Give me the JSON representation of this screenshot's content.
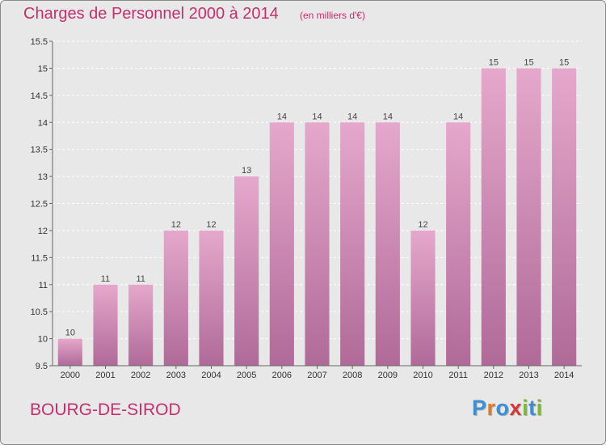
{
  "header": {
    "title": "Charges de Personnel 2000 à 2014",
    "subtitle": "(en milliers d'€)"
  },
  "footer": {
    "commune": "BOURG-DE-SIROD",
    "logo": [
      "P",
      "r",
      "o",
      "x",
      "i",
      "t",
      "i"
    ]
  },
  "colors": {
    "title": "#c0306e",
    "bar_top": "#e5a8cc",
    "bar_bottom": "#b06a98",
    "background": "#e8e8e8",
    "logo": [
      "#3a8fd8",
      "#e07a2a",
      "#3a8fd8",
      "#d23a3a",
      "#7cb83a",
      "#3a8fd8",
      "#7cb83a"
    ]
  },
  "chart_data": {
    "type": "bar",
    "categories": [
      "2000",
      "2001",
      "2002",
      "2003",
      "2004",
      "2005",
      "2006",
      "2007",
      "2008",
      "2009",
      "2010",
      "2011",
      "2012",
      "2013",
      "2014"
    ],
    "values": [
      10,
      11,
      11,
      12,
      12,
      13,
      14,
      14,
      14,
      14,
      12,
      14,
      15,
      15,
      15
    ],
    "data_labels": [
      "10",
      "11",
      "11",
      "12",
      "12",
      "13",
      "14",
      "14",
      "14",
      "14",
      "12",
      "14",
      "15",
      "15",
      "15"
    ],
    "yticks": [
      "9.5",
      "10",
      "10.5",
      "11",
      "11.5",
      "12",
      "12.5",
      "13",
      "13.5",
      "14",
      "14.5",
      "15",
      "15.5"
    ],
    "ylim": [
      9.5,
      15.5
    ],
    "grid": true,
    "legend": "none"
  }
}
